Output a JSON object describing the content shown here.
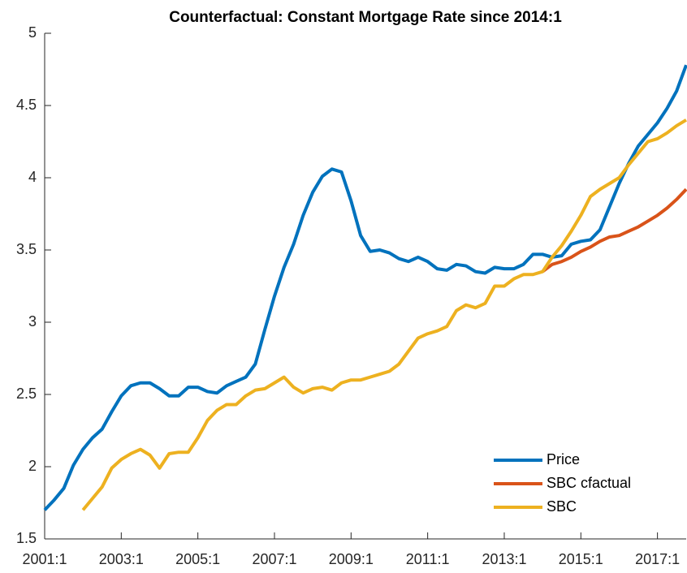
{
  "chart_data": {
    "type": "line",
    "title": "Counterfactual: Constant Mortgage Rate since 2014:1",
    "categories": [
      "2001:1",
      null,
      null,
      null,
      null,
      null,
      null,
      null,
      "2003:1",
      null,
      null,
      null,
      null,
      null,
      null,
      null,
      "2005:1",
      null,
      null,
      null,
      null,
      null,
      null,
      null,
      "2007:1",
      null,
      null,
      null,
      null,
      null,
      null,
      null,
      "2009:1",
      null,
      null,
      null,
      null,
      null,
      null,
      null,
      "2011:1",
      null,
      null,
      null,
      null,
      null,
      null,
      null,
      "2013:1",
      null,
      null,
      null,
      null,
      null,
      null,
      null,
      "2015:1",
      null,
      null,
      null,
      null,
      null,
      null,
      null,
      "2017:1",
      null,
      null,
      null
    ],
    "series": [
      {
        "name": "Price",
        "color": "#0072BD",
        "values": [
          1.7,
          1.77,
          1.85,
          2.01,
          2.12,
          2.2,
          2.26,
          2.38,
          2.49,
          2.56,
          2.58,
          2.58,
          2.54,
          2.49,
          2.49,
          2.55,
          2.55,
          2.52,
          2.51,
          2.56,
          2.59,
          2.62,
          2.71,
          2.95,
          3.18,
          3.38,
          3.54,
          3.74,
          3.9,
          4.01,
          4.06,
          4.04,
          3.84,
          3.6,
          3.49,
          3.5,
          3.48,
          3.44,
          3.42,
          3.45,
          3.42,
          3.37,
          3.36,
          3.4,
          3.39,
          3.35,
          3.34,
          3.38,
          3.37,
          3.37,
          3.4,
          3.47,
          3.47,
          3.45,
          3.46,
          3.54,
          3.56,
          3.57,
          3.64,
          3.8,
          3.96,
          4.1,
          4.22,
          4.3,
          4.38,
          4.48,
          4.6,
          4.78
        ]
      },
      {
        "name": "SBC cfactual",
        "color": "#D95319",
        "values": [
          null,
          null,
          null,
          null,
          null,
          null,
          null,
          null,
          null,
          null,
          null,
          null,
          null,
          null,
          null,
          null,
          null,
          null,
          null,
          null,
          null,
          null,
          null,
          null,
          null,
          null,
          null,
          null,
          null,
          null,
          null,
          null,
          null,
          null,
          null,
          null,
          null,
          null,
          null,
          null,
          null,
          null,
          null,
          null,
          null,
          null,
          null,
          null,
          null,
          null,
          null,
          null,
          3.35,
          3.4,
          3.42,
          3.45,
          3.49,
          3.52,
          3.56,
          3.59,
          3.6,
          3.63,
          3.66,
          3.7,
          3.74,
          3.79,
          3.85,
          3.92
        ]
      },
      {
        "name": "SBC",
        "color": "#EDB120",
        "values": [
          null,
          null,
          null,
          null,
          1.7,
          1.78,
          1.86,
          1.99,
          2.05,
          2.09,
          2.12,
          2.08,
          1.99,
          2.09,
          2.1,
          2.1,
          2.2,
          2.32,
          2.39,
          2.43,
          2.43,
          2.49,
          2.53,
          2.54,
          2.58,
          2.62,
          2.55,
          2.51,
          2.54,
          2.55,
          2.53,
          2.58,
          2.6,
          2.6,
          2.62,
          2.64,
          2.66,
          2.71,
          2.8,
          2.89,
          2.92,
          2.94,
          2.97,
          3.08,
          3.12,
          3.1,
          3.13,
          3.25,
          3.25,
          3.3,
          3.33,
          3.33,
          3.35,
          3.45,
          3.53,
          3.63,
          3.74,
          3.87,
          3.92,
          3.96,
          4.0,
          4.09,
          4.17,
          4.25,
          4.27,
          4.31,
          4.36,
          4.4
        ]
      }
    ],
    "ylim": [
      1.5,
      5
    ],
    "yticks": [
      1.5,
      2,
      2.5,
      3,
      3.5,
      4,
      4.5,
      5
    ],
    "legend": "lower right"
  }
}
